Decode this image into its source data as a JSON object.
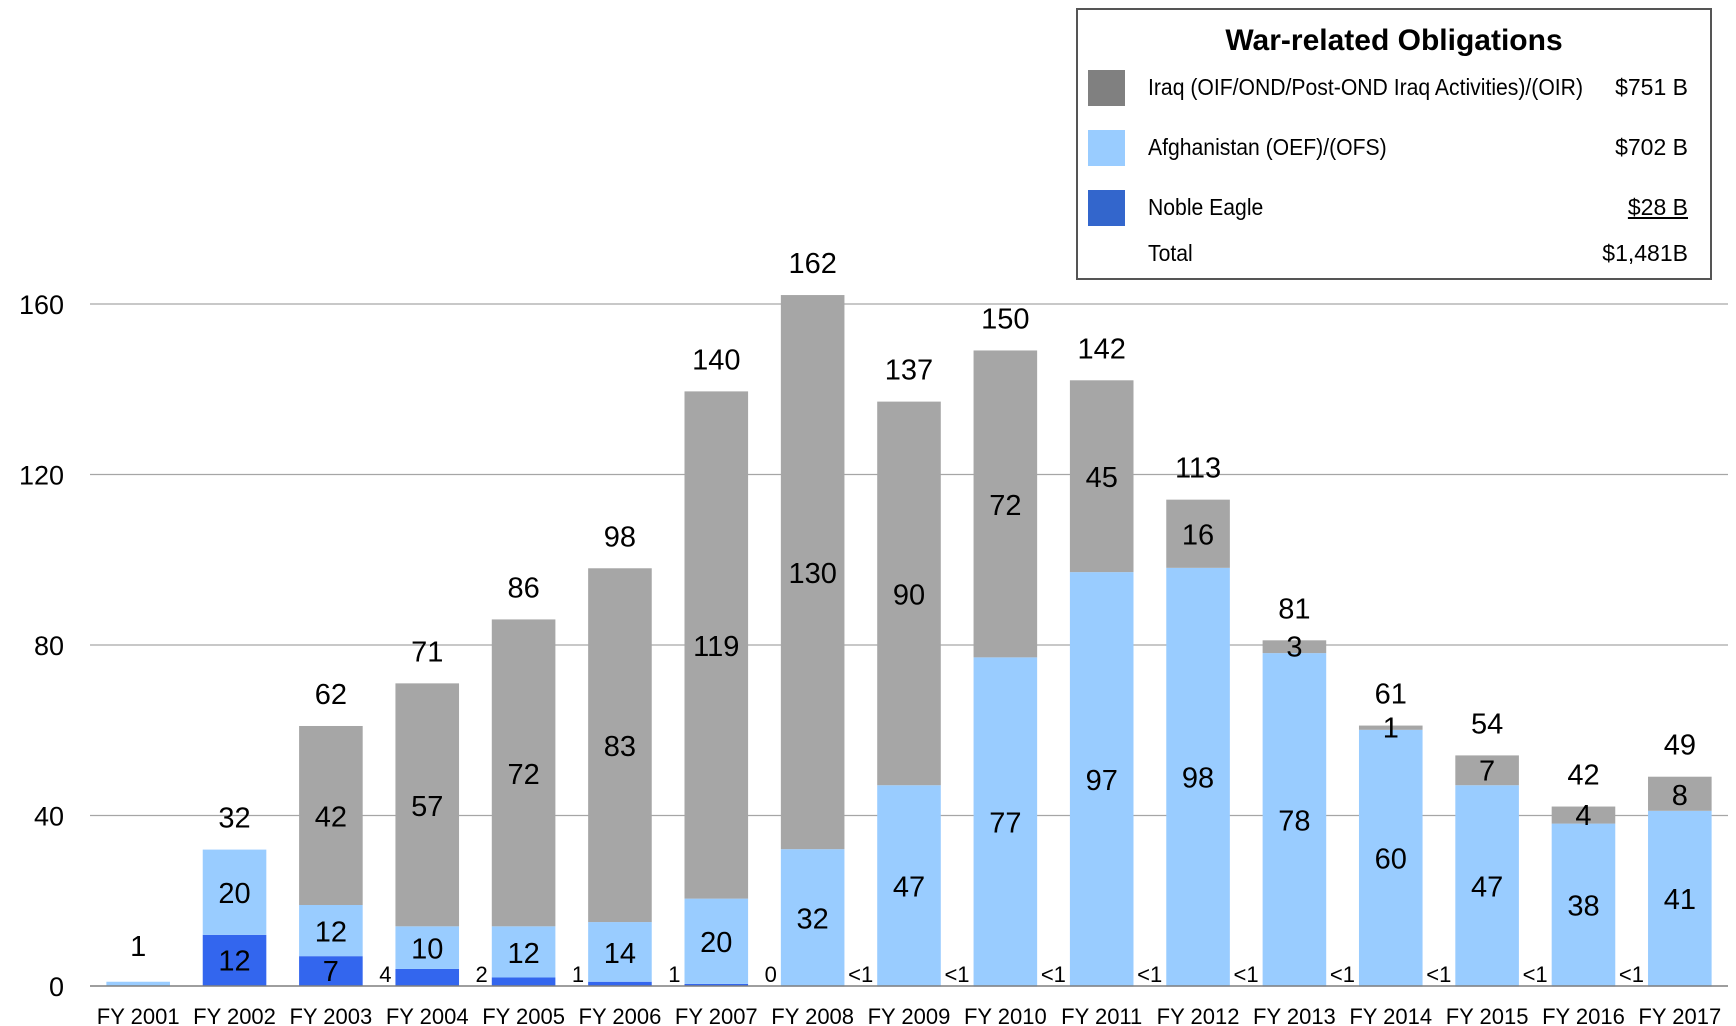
{
  "chart_data": {
    "type": "bar",
    "stacked": true,
    "title": "",
    "xlabel": "",
    "ylabel": "",
    "ylim": [
      0,
      160
    ],
    "yticks": [
      0,
      40,
      80,
      120,
      160
    ],
    "grid": true,
    "categories": [
      "FY 2001",
      "FY 2002",
      "FY 2003",
      "FY 2004",
      "FY 2005",
      "FY 2006",
      "FY 2007",
      "FY 2008",
      "FY 2009",
      "FY 2010",
      "FY 2011",
      "FY 2012",
      "FY 2013",
      "FY 2014",
      "FY 2015",
      "FY 2016",
      "FY 2017"
    ],
    "series": [
      {
        "name": "Noble Eagle",
        "color": "#3366ee",
        "values": [
          0,
          12,
          7,
          4,
          2,
          1,
          0.5,
          0.1,
          0.1,
          0.1,
          0.1,
          0.1,
          0.1,
          0.1,
          0.1,
          0.1,
          0.1
        ],
        "labels": [
          "",
          "12",
          "7",
          "4",
          "2",
          "1",
          "1",
          "0",
          "<1",
          "<1",
          "<1",
          "<1",
          "<1",
          "<1",
          "<1",
          "<1",
          "<1"
        ]
      },
      {
        "name": "Afghanistan (OEF)/(OFS)",
        "color": "#99ccff",
        "values": [
          1,
          20,
          12,
          10,
          12,
          14,
          20,
          32,
          47,
          77,
          97,
          98,
          78,
          60,
          47,
          38,
          41
        ],
        "labels": [
          "",
          "20",
          "12",
          "10",
          "12",
          "14",
          "20",
          "32",
          "47",
          "77",
          "97",
          "98",
          "78",
          "60",
          "47",
          "38",
          "41"
        ]
      },
      {
        "name": "Iraq (OIF/OND/Post-OND Iraq Activities)/(OIR)",
        "color": "#a6a6a6",
        "values": [
          0,
          0,
          42,
          57,
          72,
          83,
          119,
          130,
          90,
          72,
          45,
          16,
          3,
          1,
          7,
          4,
          8
        ],
        "labels": [
          "",
          "",
          "42",
          "57",
          "72",
          "83",
          "119",
          "130",
          "90",
          "72",
          "45",
          "16",
          "3",
          "1",
          "7",
          "4",
          "8"
        ]
      }
    ],
    "totals": [
      "1",
      "32",
      "62",
      "71",
      "86",
      "98",
      "140",
      "162",
      "137",
      "150",
      "142",
      "113",
      "81",
      "61",
      "54",
      "42",
      "49"
    ],
    "legend": {
      "placement": "top-right",
      "title": "War-related Obligations",
      "rows": [
        {
          "name": "Iraq (OIF/OND/Post-OND Iraq Activities)/(OIR)",
          "value": "$751 B",
          "color": "#808080"
        },
        {
          "name": "Afghanistan (OEF)/(OFS)",
          "value": "$702 B",
          "color": "#99ccff"
        },
        {
          "name": "Noble Eagle",
          "value": "$28 B",
          "color": "#3366cc"
        },
        {
          "name": "Total",
          "value": "$1,481B",
          "color": ""
        }
      ]
    }
  }
}
